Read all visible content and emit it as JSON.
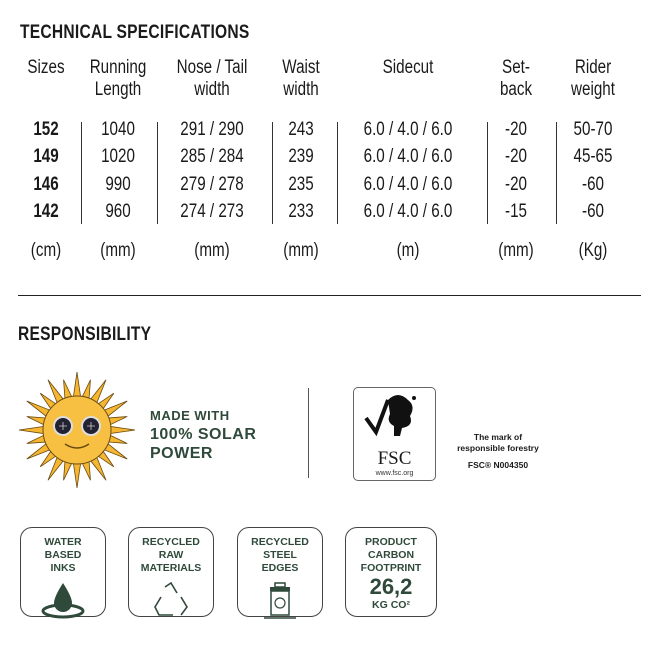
{
  "specs": {
    "title": "TECHNICAL SPECIFICATIONS",
    "headers": [
      [
        "Sizes",
        ""
      ],
      [
        "Running",
        "Length"
      ],
      [
        "Nose / Tail",
        "width"
      ],
      [
        "Waist",
        "width"
      ],
      [
        "Sidecut",
        ""
      ],
      [
        "Set-",
        "back"
      ],
      [
        "Rider",
        "weight"
      ]
    ],
    "rows": [
      [
        "152",
        "1040",
        "291 / 290",
        "243",
        "6.0 / 4.0 / 6.0",
        "-20",
        "50-70"
      ],
      [
        "149",
        "1020",
        "285 / 284",
        "239",
        "6.0 / 4.0 / 6.0",
        "-20",
        "45-65"
      ],
      [
        "146",
        "990",
        "279 / 278",
        "235",
        "6.0 / 4.0 / 6.0",
        "-20",
        "-60"
      ],
      [
        "142",
        "960",
        "274 / 273",
        "233",
        "6.0 / 4.0 / 6.0",
        "-15",
        "-60"
      ]
    ],
    "units": [
      "(cm)",
      "(mm)",
      "(mm)",
      "(mm)",
      "(m)",
      "(mm)",
      "(Kg)"
    ]
  },
  "responsibility": {
    "title": "RESPONSIBILITY",
    "solar": [
      "MADE WITH",
      "100% SOLAR",
      "POWER"
    ],
    "fsc": {
      "logo_text": "FSC",
      "url": "www.fsc.org",
      "mark": [
        "The mark of",
        "responsible forestry"
      ],
      "code": "FSC® N004350"
    },
    "badges": [
      {
        "lines": [
          "WATER",
          "BASED",
          "INKS"
        ],
        "icon": "water-drop-icon"
      },
      {
        "lines": [
          "RECYCLED",
          "RAW",
          "MATERIALS"
        ],
        "icon": "recycle-icon"
      },
      {
        "lines": [
          "RECYCLED",
          "STEEL",
          "EDGES"
        ],
        "icon": "recycle-bin-icon"
      },
      {
        "lines": [
          "PRODUCT",
          "CARBON",
          "FOOTPRINT"
        ],
        "value": "26,2",
        "unit": "KG CO²"
      }
    ],
    "colors": {
      "green": "#2f4a3a",
      "sun": "#f5b731"
    }
  }
}
